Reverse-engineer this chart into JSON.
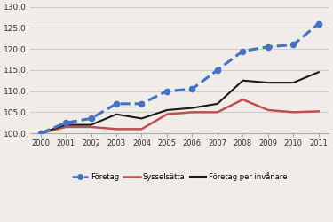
{
  "years": [
    2000,
    2001,
    2002,
    2003,
    2004,
    2005,
    2006,
    2007,
    2008,
    2009,
    2010,
    2011
  ],
  "foretag": [
    100.0,
    102.5,
    103.5,
    107.0,
    107.0,
    110.0,
    110.5,
    115.0,
    119.5,
    120.5,
    121.0,
    126.0
  ],
  "sysselsatta": [
    100.0,
    101.5,
    101.5,
    101.0,
    101.0,
    104.5,
    105.0,
    105.0,
    108.0,
    105.5,
    105.0,
    105.2
  ],
  "foretag_per_inv": [
    100.0,
    102.0,
    102.0,
    104.5,
    103.5,
    105.5,
    106.0,
    107.0,
    112.5,
    112.0,
    112.0,
    114.5
  ],
  "foretag_color": "#4472c4",
  "sysselsatta_color": "#c0504d",
  "foretag_per_inv_color": "#1a1a1a",
  "legend_foretag": "Företag",
  "legend_sysselsatta": "Sysselsätta",
  "legend_foretag_per_inv": "Företag per invånare",
  "ylim_min": 100.0,
  "ylim_max": 130.0,
  "yticks": [
    100.0,
    105.0,
    110.0,
    115.0,
    120.0,
    125.0,
    130.0
  ],
  "bg_color": "#f0ede8",
  "grid_color": "#d0ccc8"
}
